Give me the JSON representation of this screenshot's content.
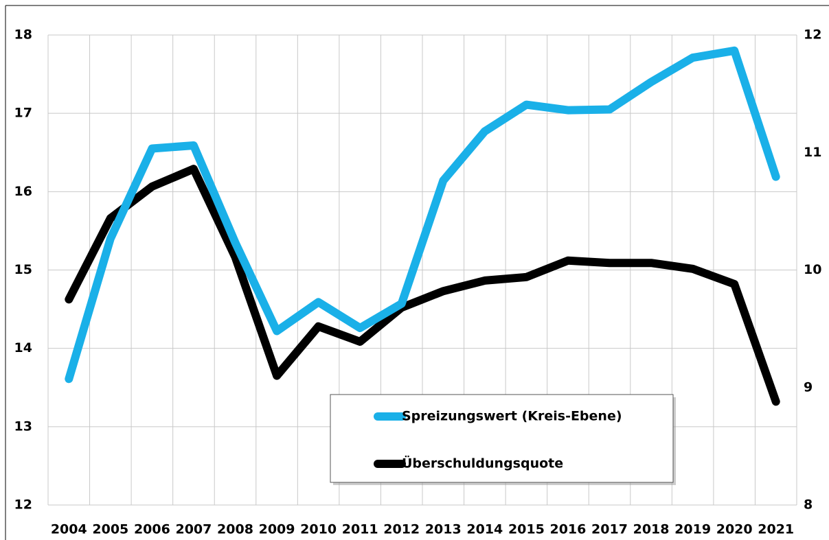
{
  "chart_data": {
    "type": "line",
    "categories": [
      "2004",
      "2005",
      "2006",
      "2007",
      "2008",
      "2009",
      "2010",
      "2011",
      "2012",
      "2013",
      "2014",
      "2015",
      "2016",
      "2017",
      "2018",
      "2019",
      "2020",
      "2021"
    ],
    "series": [
      {
        "name": "Spreizungswert (Kreis-Ebene)",
        "color": "#1ab0e8",
        "axis": "y",
        "values": [
          13.61,
          15.4,
          16.55,
          16.59,
          15.35,
          14.22,
          14.59,
          14.26,
          14.57,
          16.14,
          16.77,
          17.11,
          17.04,
          17.05,
          17.4,
          17.71,
          17.8,
          16.19
        ]
      },
      {
        "name": "Überschuldungsquote",
        "color": "#000000",
        "axis": "y2",
        "values": [
          9.75,
          10.44,
          10.71,
          10.86,
          10.11,
          9.1,
          9.52,
          9.39,
          9.68,
          9.82,
          9.91,
          9.94,
          10.08,
          10.06,
          10.06,
          10.01,
          9.88,
          8.88
        ]
      }
    ],
    "ylim": [
      12,
      18
    ],
    "yticks": [
      12,
      13,
      14,
      15,
      16,
      17,
      18
    ],
    "y2lim": [
      8,
      12
    ],
    "y2ticks": [
      8,
      9,
      10,
      11,
      12
    ],
    "grid": true
  }
}
